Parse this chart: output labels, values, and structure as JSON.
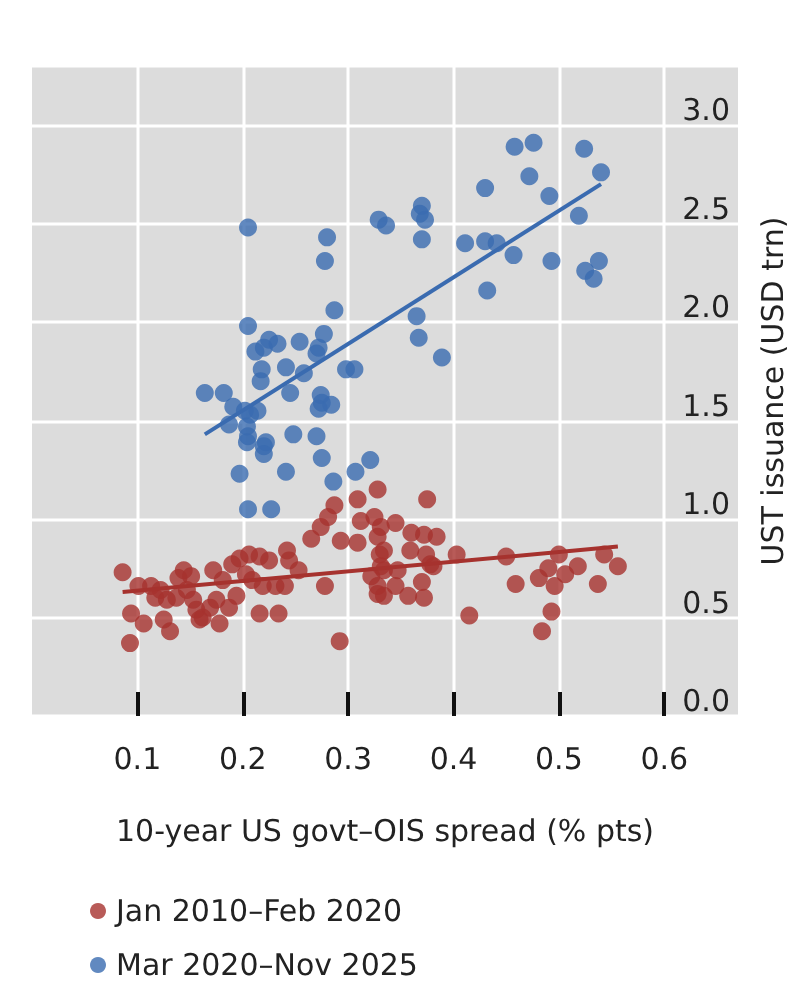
{
  "chart_data": {
    "type": "scatter",
    "xlabel": "10-year US govt–OIS spread (% pts)",
    "ylabel": "UST issuance (USD trn)",
    "xlim": [
      0,
      0.67
    ],
    "xticks": [
      0.1,
      0.2,
      0.3,
      0.4,
      0.5,
      0.6
    ],
    "ylim": [
      0,
      3.3
    ],
    "yticks": [
      {
        "value": 0,
        "label": "0.0"
      },
      {
        "value": 0.5,
        "label": "0.5"
      },
      {
        "value": 1,
        "label": "1.0"
      },
      {
        "value": 1.5,
        "label": "1.5"
      },
      {
        "value": 2,
        "label": "2.0"
      },
      {
        "value": 2.5,
        "label": "2.5"
      },
      {
        "value": 3,
        "label": "3.0"
      }
    ],
    "grid": true,
    "legend": "bottom",
    "marker": "circle",
    "series": [
      {
        "name": "Jan 2010–Feb 2020",
        "color": "#a6322e",
        "x": [
          0.086,
          0.101,
          0.113,
          0.122,
          0.117,
          0.128,
          0.137,
          0.144,
          0.139,
          0.151,
          0.147,
          0.153,
          0.156,
          0.162,
          0.169,
          0.175,
          0.172,
          0.181,
          0.19,
          0.197,
          0.206,
          0.216,
          0.225,
          0.187,
          0.194,
          0.203,
          0.209,
          0.219,
          0.231,
          0.24,
          0.242,
          0.244,
          0.253,
          0.278,
          0.216,
          0.234,
          0.178,
          0.159,
          0.106,
          0.131,
          0.125,
          0.094,
          0.093,
          0.292,
          0.265,
          0.274,
          0.281,
          0.287,
          0.309,
          0.328,
          0.312,
          0.325,
          0.331,
          0.293,
          0.309,
          0.328,
          0.334,
          0.322,
          0.328,
          0.334,
          0.375,
          0.33,
          0.331,
          0.328,
          0.334,
          0.345,
          0.36,
          0.372,
          0.384,
          0.359,
          0.374,
          0.378,
          0.381,
          0.347,
          0.345,
          0.357,
          0.372,
          0.37,
          0.403,
          0.45,
          0.459,
          0.415,
          0.481,
          0.49,
          0.5,
          0.506,
          0.496,
          0.518,
          0.493,
          0.484,
          0.537,
          0.543,
          0.556
        ],
        "values": [
          0.73,
          0.66,
          0.66,
          0.64,
          0.6,
          0.59,
          0.6,
          0.74,
          0.7,
          0.71,
          0.64,
          0.59,
          0.54,
          0.5,
          0.55,
          0.59,
          0.74,
          0.69,
          0.77,
          0.8,
          0.82,
          0.81,
          0.79,
          0.55,
          0.61,
          0.72,
          0.69,
          0.66,
          0.66,
          0.66,
          0.84,
          0.79,
          0.74,
          0.66,
          0.52,
          0.52,
          0.47,
          0.49,
          0.47,
          0.43,
          0.49,
          0.52,
          0.37,
          0.38,
          0.9,
          0.96,
          1.01,
          1.07,
          1.1,
          1.15,
          0.99,
          1.01,
          0.96,
          0.89,
          0.88,
          0.91,
          0.84,
          0.71,
          0.62,
          0.74,
          1.1,
          0.82,
          0.76,
          0.66,
          0.61,
          0.98,
          0.93,
          0.92,
          0.91,
          0.84,
          0.82,
          0.77,
          0.76,
          0.74,
          0.66,
          0.61,
          0.6,
          0.68,
          0.82,
          0.81,
          0.67,
          0.51,
          0.7,
          0.75,
          0.82,
          0.72,
          0.66,
          0.76,
          0.53,
          0.43,
          0.67,
          0.82,
          0.76
        ]
      },
      {
        "name": "Mar 2020–Nov 2025",
        "color": "#3a6bb0",
        "x": [
          0.205,
          0.28,
          0.278,
          0.329,
          0.336,
          0.287,
          0.205,
          0.277,
          0.225,
          0.233,
          0.22,
          0.254,
          0.272,
          0.27,
          0.212,
          0.218,
          0.241,
          0.258,
          0.298,
          0.306,
          0.217,
          0.164,
          0.182,
          0.245,
          0.274,
          0.275,
          0.284,
          0.272,
          0.191,
          0.202,
          0.214,
          0.207,
          0.187,
          0.204,
          0.205,
          0.222,
          0.248,
          0.27,
          0.458,
          0.476,
          0.524,
          0.54,
          0.43,
          0.472,
          0.491,
          0.519,
          0.37,
          0.368,
          0.373,
          0.37,
          0.411,
          0.43,
          0.441,
          0.457,
          0.493,
          0.432,
          0.525,
          0.533,
          0.538,
          0.365,
          0.367,
          0.389,
          0.204,
          0.22,
          0.22,
          0.275,
          0.197,
          0.241,
          0.286,
          0.307,
          0.321,
          0.205,
          0.227
        ],
        "values": [
          2.48,
          2.43,
          2.31,
          2.52,
          2.49,
          2.06,
          1.98,
          1.94,
          1.91,
          1.89,
          1.87,
          1.9,
          1.87,
          1.84,
          1.85,
          1.76,
          1.77,
          1.74,
          1.76,
          1.76,
          1.7,
          1.64,
          1.64,
          1.64,
          1.63,
          1.59,
          1.58,
          1.56,
          1.57,
          1.55,
          1.55,
          1.53,
          1.48,
          1.47,
          1.42,
          1.39,
          1.43,
          1.42,
          2.89,
          2.91,
          2.88,
          2.76,
          2.68,
          2.74,
          2.64,
          2.54,
          2.59,
          2.55,
          2.52,
          2.42,
          2.4,
          2.41,
          2.4,
          2.34,
          2.31,
          2.16,
          2.26,
          2.22,
          2.31,
          2.03,
          1.92,
          1.82,
          1.39,
          1.37,
          1.33,
          1.31,
          1.23,
          1.24,
          1.19,
          1.24,
          1.3,
          1.05,
          1.05
        ]
      },
      {
        "type": "line",
        "marker": "none",
        "color": "#a6322e",
        "x": [
          0.086,
          0.556
        ],
        "values": [
          0.63,
          0.86
        ]
      },
      {
        "type": "line",
        "marker": "none",
        "color": "#3a6bb0",
        "x": [
          0.164,
          0.54
        ],
        "values": [
          1.43,
          2.7
        ]
      }
    ]
  }
}
